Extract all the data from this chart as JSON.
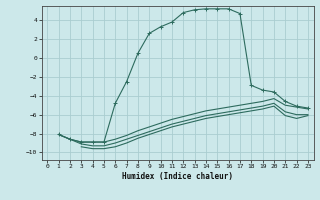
{
  "xlabel": "Humidex (Indice chaleur)",
  "bg_color": "#cce8ea",
  "grid_color": "#aacdd0",
  "line_color": "#2d6b5e",
  "xlim": [
    -0.5,
    23.5
  ],
  "ylim": [
    -10.8,
    5.5
  ],
  "xticks": [
    0,
    1,
    2,
    3,
    4,
    5,
    6,
    7,
    8,
    9,
    10,
    11,
    12,
    13,
    14,
    15,
    16,
    17,
    18,
    19,
    20,
    21,
    22,
    23
  ],
  "yticks": [
    -10,
    -8,
    -6,
    -4,
    -2,
    0,
    2,
    4
  ],
  "curve1_x": [
    1,
    2,
    3,
    4,
    5,
    6,
    7,
    8,
    9,
    10,
    11,
    12,
    13,
    14,
    15,
    16,
    17,
    18,
    19,
    20,
    21,
    22,
    23
  ],
  "curve1_y": [
    -8.1,
    -8.6,
    -8.9,
    -8.9,
    -8.9,
    -4.8,
    -2.5,
    0.5,
    2.6,
    3.3,
    3.8,
    4.8,
    5.1,
    5.2,
    5.2,
    5.2,
    4.7,
    -2.9,
    -3.4,
    -3.6,
    -4.6,
    -5.1,
    -5.3
  ],
  "curve2_x": [
    1,
    2,
    3,
    4,
    5,
    6,
    7,
    8,
    9,
    10,
    11,
    12,
    13,
    14,
    15,
    16,
    17,
    18,
    19,
    20,
    21,
    22,
    23
  ],
  "curve2_y": [
    -8.1,
    -8.6,
    -8.9,
    -8.9,
    -8.9,
    -8.6,
    -8.2,
    -7.7,
    -7.3,
    -6.9,
    -6.5,
    -6.2,
    -5.9,
    -5.6,
    -5.4,
    -5.2,
    -5.0,
    -4.8,
    -4.6,
    -4.3,
    -5.0,
    -5.2,
    -5.4
  ],
  "curve3_x": [
    1,
    2,
    3,
    4,
    5,
    6,
    7,
    8,
    9,
    10,
    11,
    12,
    13,
    14,
    15,
    16,
    17,
    18,
    19,
    20,
    21,
    22,
    23
  ],
  "curve3_y": [
    -8.1,
    -8.6,
    -9.1,
    -9.3,
    -9.3,
    -9.0,
    -8.6,
    -8.2,
    -7.8,
    -7.4,
    -7.0,
    -6.7,
    -6.4,
    -6.1,
    -5.9,
    -5.7,
    -5.5,
    -5.3,
    -5.1,
    -4.8,
    -5.7,
    -6.0,
    -6.0
  ],
  "curve4_x": [
    3,
    4,
    5,
    6,
    7,
    8,
    9,
    10,
    11,
    12,
    13,
    14,
    15,
    16,
    17,
    18,
    19,
    20,
    21,
    22,
    23
  ],
  "curve4_y": [
    -9.4,
    -9.6,
    -9.6,
    -9.4,
    -9.0,
    -8.5,
    -8.1,
    -7.7,
    -7.3,
    -7.0,
    -6.7,
    -6.4,
    -6.2,
    -6.0,
    -5.8,
    -5.6,
    -5.4,
    -5.1,
    -6.1,
    -6.4,
    -6.1
  ]
}
